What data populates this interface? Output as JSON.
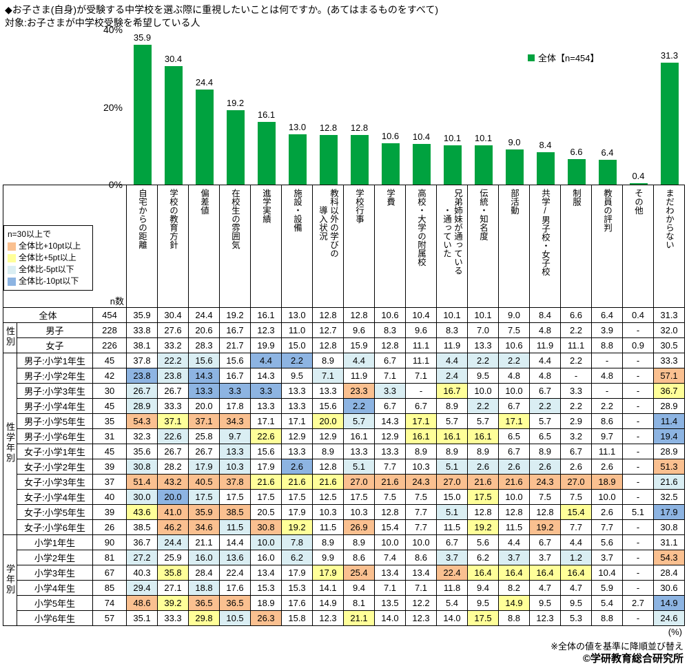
{
  "title": "◆お子さま(自身)が受験する中学校を選ぶ際に重視したいことは何ですか。(あてはまるものをすべて)",
  "subtitle": "対象:お子さまが中学校受験を希望している人",
  "colors": {
    "bar": "#00A23F",
    "plus10": "#FAC090",
    "plus5": "#FFFF99",
    "minus5": "#DAEEF3",
    "minus10": "#8DB4E2"
  },
  "threshold_legend": {
    "note": "n=30以上で",
    "items": [
      {
        "label": "全体比+10pt以上",
        "color_key": "plus10"
      },
      {
        "label": "全体比+5pt以上",
        "color_key": "plus5"
      },
      {
        "label": "全体比-5pt以下",
        "color_key": "minus5"
      },
      {
        "label": "全体比-10pt以下",
        "color_key": "minus10"
      }
    ]
  },
  "chart_data": {
    "type": "bar",
    "title": "お子さま(自身)が受験する中学校を選ぶ際に重視したいこと(あてはまるものをすべて)",
    "series_name": "全体【n=454】",
    "categories": [
      "自宅からの距離",
      "学校の教育方針",
      "偏差値",
      "在校生の雰囲気",
      "進学実績",
      "施設・設備",
      "教科以外の学びの導入状況",
      "学校行事",
      "学費",
      "高校・大学の附属校",
      "兄弟姉妹が通っている・通っていた",
      "伝統・知名度",
      "部活動",
      "共学/男子校・女子校",
      "制服",
      "教員の評判",
      "その他",
      "まだわからない"
    ],
    "values": [
      35.9,
      30.4,
      24.4,
      19.2,
      16.1,
      13.0,
      12.8,
      12.8,
      10.6,
      10.4,
      10.1,
      10.1,
      9.0,
      8.4,
      6.6,
      6.4,
      0.4,
      31.3
    ],
    "ylim": [
      0,
      40
    ],
    "yticks": [
      "40%",
      "20%",
      "0%"
    ],
    "grid": false,
    "legend_position": "top-right"
  },
  "table": {
    "n_header": "n数",
    "columns": [
      "自宅からの距離",
      "学校の教育方針",
      "偏差値",
      "在校生の雰囲気",
      "進学実績",
      "施設・設備",
      "教科以外の学びの\n導入状況",
      "学校行事",
      "学費",
      "高校・大学の附属校",
      "兄弟姉妹が通っている\n・通っていた",
      "伝統・知名度",
      "部活動",
      "共学/男子校・女子校",
      "制服",
      "教員の評判",
      "その他",
      "まだわからない"
    ],
    "groups": [
      {
        "label": "性別",
        "span": 2
      },
      {
        "label": "性学年別",
        "span": 12
      },
      {
        "label": "学年別",
        "span": 6
      }
    ],
    "rows": [
      {
        "label": "全体",
        "n": 454,
        "values": [
          35.9,
          30.4,
          24.4,
          19.2,
          16.1,
          13.0,
          12.8,
          12.8,
          10.6,
          10.4,
          10.1,
          10.1,
          9.0,
          8.4,
          6.6,
          6.4,
          0.4,
          31.3
        ]
      },
      {
        "label": "男子",
        "n": 228,
        "values": [
          33.8,
          27.6,
          20.6,
          16.7,
          12.3,
          11.0,
          12.7,
          9.6,
          8.3,
          9.6,
          8.3,
          7.0,
          7.5,
          4.8,
          2.2,
          3.9,
          null,
          32.0
        ]
      },
      {
        "label": "女子",
        "n": 226,
        "values": [
          38.1,
          33.2,
          28.3,
          21.7,
          19.9,
          15.0,
          12.8,
          15.9,
          12.8,
          11.1,
          11.9,
          13.3,
          10.6,
          11.9,
          11.1,
          8.8,
          0.9,
          30.5
        ]
      },
      {
        "label": "男子:小学1年生",
        "n": 45,
        "values": [
          37.8,
          22.2,
          15.6,
          15.6,
          4.4,
          2.2,
          8.9,
          4.4,
          6.7,
          11.1,
          4.4,
          2.2,
          2.2,
          4.4,
          2.2,
          null,
          null,
          33.3
        ]
      },
      {
        "label": "男子:小学2年生",
        "n": 42,
        "values": [
          23.8,
          23.8,
          14.3,
          16.7,
          14.3,
          9.5,
          7.1,
          11.9,
          7.1,
          7.1,
          2.4,
          9.5,
          4.8,
          4.8,
          null,
          4.8,
          null,
          57.1
        ]
      },
      {
        "label": "男子:小学3年生",
        "n": 30,
        "values": [
          26.7,
          26.7,
          13.3,
          3.3,
          3.3,
          13.3,
          13.3,
          23.3,
          3.3,
          null,
          16.7,
          10.0,
          10.0,
          6.7,
          3.3,
          null,
          null,
          36.7
        ]
      },
      {
        "label": "男子:小学4年生",
        "n": 45,
        "values": [
          28.9,
          33.3,
          20.0,
          17.8,
          13.3,
          13.3,
          15.6,
          2.2,
          6.7,
          6.7,
          8.9,
          2.2,
          6.7,
          2.2,
          2.2,
          2.2,
          null,
          28.9
        ]
      },
      {
        "label": "男子:小学5年生",
        "n": 35,
        "values": [
          54.3,
          37.1,
          37.1,
          34.3,
          17.1,
          17.1,
          20.0,
          5.7,
          14.3,
          17.1,
          5.7,
          5.7,
          17.1,
          5.7,
          2.9,
          8.6,
          null,
          11.4
        ]
      },
      {
        "label": "男子:小学6年生",
        "n": 31,
        "values": [
          32.3,
          22.6,
          25.8,
          9.7,
          22.6,
          12.9,
          12.9,
          16.1,
          12.9,
          16.1,
          16.1,
          16.1,
          6.5,
          6.5,
          3.2,
          9.7,
          null,
          19.4
        ]
      },
      {
        "label": "女子:小学1年生",
        "n": 45,
        "values": [
          35.6,
          26.7,
          26.7,
          13.3,
          15.6,
          13.3,
          8.9,
          13.3,
          13.3,
          8.9,
          8.9,
          8.9,
          6.7,
          8.9,
          6.7,
          11.1,
          null,
          28.9
        ]
      },
      {
        "label": "女子:小学2年生",
        "n": 39,
        "values": [
          30.8,
          28.2,
          17.9,
          10.3,
          17.9,
          2.6,
          12.8,
          5.1,
          7.7,
          10.3,
          5.1,
          2.6,
          2.6,
          2.6,
          2.6,
          2.6,
          null,
          51.3
        ]
      },
      {
        "label": "女子:小学3年生",
        "n": 37,
        "values": [
          51.4,
          43.2,
          40.5,
          37.8,
          21.6,
          21.6,
          21.6,
          27.0,
          21.6,
          24.3,
          27.0,
          21.6,
          21.6,
          24.3,
          27.0,
          18.9,
          null,
          21.6
        ]
      },
      {
        "label": "女子:小学4年生",
        "n": 40,
        "values": [
          30.0,
          20.0,
          17.5,
          17.5,
          17.5,
          17.5,
          12.5,
          17.5,
          7.5,
          7.5,
          15.0,
          17.5,
          10.0,
          7.5,
          7.5,
          10.0,
          null,
          32.5
        ]
      },
      {
        "label": "女子:小学5年生",
        "n": 39,
        "values": [
          43.6,
          41.0,
          35.9,
          38.5,
          20.5,
          17.9,
          10.3,
          10.3,
          12.8,
          7.7,
          5.1,
          12.8,
          12.8,
          12.8,
          15.4,
          2.6,
          5.1,
          17.9
        ]
      },
      {
        "label": "女子:小学6年生",
        "n": 26,
        "values": [
          38.5,
          46.2,
          34.6,
          11.5,
          30.8,
          19.2,
          11.5,
          26.9,
          15.4,
          7.7,
          11.5,
          19.2,
          11.5,
          19.2,
          7.7,
          7.7,
          null,
          30.8
        ]
      },
      {
        "label": "小学1年生",
        "n": 90,
        "values": [
          36.7,
          24.4,
          21.1,
          14.4,
          10.0,
          7.8,
          8.9,
          8.9,
          10.0,
          10.0,
          6.7,
          5.6,
          4.4,
          6.7,
          4.4,
          5.6,
          null,
          31.1
        ]
      },
      {
        "label": "小学2年生",
        "n": 81,
        "values": [
          27.2,
          25.9,
          16.0,
          13.6,
          16.0,
          6.2,
          9.9,
          8.6,
          7.4,
          8.6,
          3.7,
          6.2,
          3.7,
          3.7,
          1.2,
          3.7,
          null,
          54.3
        ]
      },
      {
        "label": "小学3年生",
        "n": 67,
        "values": [
          40.3,
          35.8,
          28.4,
          22.4,
          13.4,
          17.9,
          17.9,
          25.4,
          13.4,
          13.4,
          22.4,
          16.4,
          16.4,
          16.4,
          16.4,
          10.4,
          null,
          28.4
        ]
      },
      {
        "label": "小学4年生",
        "n": 85,
        "values": [
          29.4,
          27.1,
          18.8,
          17.6,
          15.3,
          15.3,
          14.1,
          9.4,
          7.1,
          7.1,
          11.8,
          9.4,
          8.2,
          4.7,
          4.7,
          5.9,
          null,
          30.6
        ]
      },
      {
        "label": "小学5年生",
        "n": 74,
        "values": [
          48.6,
          39.2,
          36.5,
          36.5,
          18.9,
          17.6,
          14.9,
          8.1,
          13.5,
          12.2,
          5.4,
          9.5,
          14.9,
          9.5,
          9.5,
          5.4,
          2.7,
          14.9
        ]
      },
      {
        "label": "小学6年生",
        "n": 57,
        "values": [
          35.1,
          33.3,
          29.8,
          10.5,
          26.3,
          15.8,
          12.3,
          21.1,
          14.0,
          12.3,
          14.0,
          17.5,
          8.8,
          12.3,
          5.3,
          8.8,
          null,
          24.6
        ]
      }
    ]
  },
  "footer": {
    "percent_note": "(%)",
    "sort_note": "※全体の値を基準に降順並び替え",
    "copyright": "©学研教育総合研究所"
  }
}
